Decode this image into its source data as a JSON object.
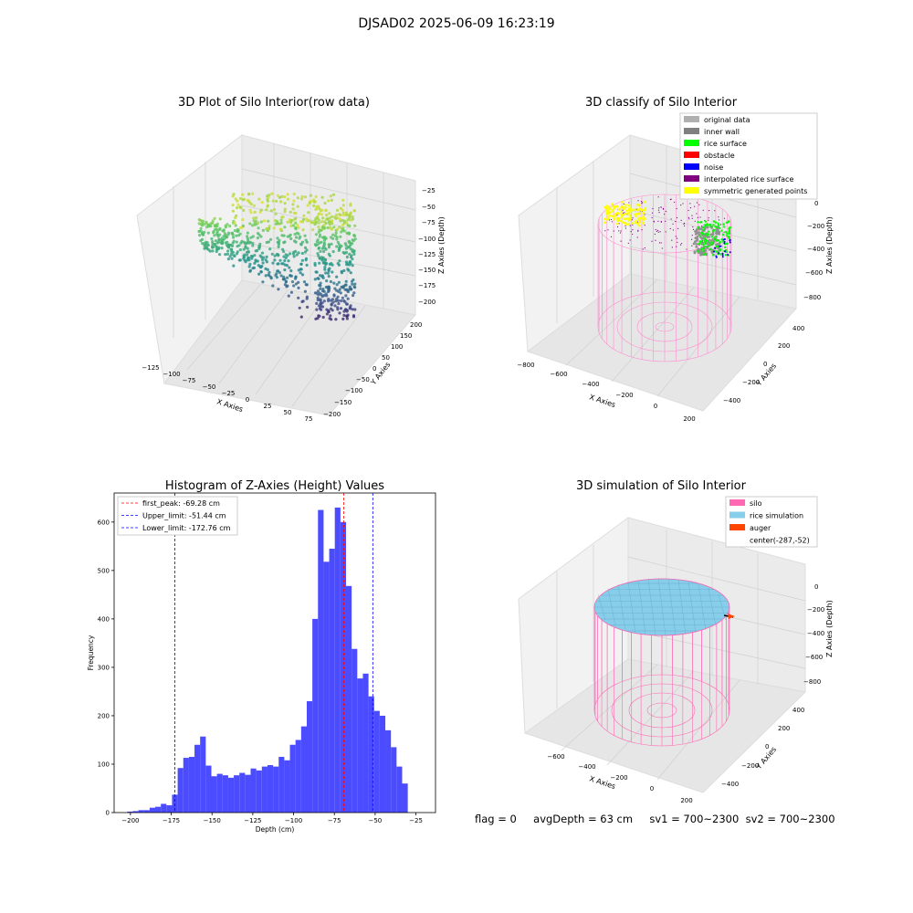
{
  "suptitle": "DJSAD02 2025-06-09 16:23:19",
  "panel1": {
    "title": "3D Plot of Silo Interior(row data)",
    "xlabel": "X Axies",
    "ylabel": "Y Axies",
    "zlabel": "Z Axies (Depth)",
    "xticks": [
      "−125",
      "−100",
      "−75",
      "−50",
      "−25",
      "0",
      "25",
      "50",
      "75"
    ],
    "yticks": [
      "−200",
      "−150",
      "−100",
      "−50",
      "0",
      "50",
      "100",
      "150",
      "200"
    ],
    "zticks": [
      "−25",
      "−50",
      "−75",
      "−100",
      "−125",
      "−150",
      "−175",
      "−200"
    ]
  },
  "panel2": {
    "title": "3D classify of Silo Interior",
    "xlabel": "X Axies",
    "ylabel": "Y Axies",
    "zlabel": "Z Axies (Depth)",
    "xticks": [
      "−800",
      "−600",
      "−400",
      "−200",
      "0",
      "200"
    ],
    "yticks": [
      "−400",
      "−200",
      "0",
      "200",
      "400"
    ],
    "zticks": [
      "0",
      "−200",
      "−400",
      "−600",
      "−800"
    ],
    "legend": [
      {
        "label": "original data",
        "color": "#b0b0b0"
      },
      {
        "label": "inner wall",
        "color": "#808080"
      },
      {
        "label": "rice surface",
        "color": "#00ff00"
      },
      {
        "label": "obstacle",
        "color": "#ff0000"
      },
      {
        "label": "noise",
        "color": "#0000ff"
      },
      {
        "label": "interpolated rice surface",
        "color": "#800080"
      },
      {
        "label": "symmetric generated points",
        "color": "#ffff00"
      }
    ]
  },
  "panel3": {
    "title": "Histogram of Z-Axies (Height) Values",
    "legend": [
      {
        "label": "first_peak: -69.28 cm",
        "color": "#ff0000"
      },
      {
        "label": "Upper_limit: -51.44 cm",
        "color": "#0000ff"
      },
      {
        "label": "Lower_limit: -172.76 cm",
        "color": "#0000ff"
      }
    ]
  },
  "panel4": {
    "title": "3D simulation of Silo Interior",
    "xlabel": "X Axies",
    "ylabel": "Y Axies",
    "zlabel": "Z Axies (Depth)",
    "xticks": [
      "−600",
      "−400",
      "−200",
      "0",
      "200"
    ],
    "yticks": [
      "−400",
      "−200",
      "0",
      "200",
      "400"
    ],
    "zticks": [
      "0",
      "−200",
      "−400",
      "−600",
      "−800"
    ],
    "legend": [
      {
        "label": "silo",
        "color": "#ff69b4"
      },
      {
        "label": "rice simulation",
        "color": "#87ceeb"
      },
      {
        "label": "auger",
        "color": "#ff4500"
      },
      {
        "label": "center(-287,-52)",
        "color": ""
      }
    ]
  },
  "footer": {
    "flag": "flag = 0",
    "avg": "avgDepth = 63 cm",
    "sv1": "sv1 = 700~2300",
    "sv2": "sv2 = 700~2300"
  },
  "chart_data": {
    "type": "bar",
    "title": "Histogram of Z-Axies (Height) Values",
    "xlabel": "Depth (cm)",
    "ylabel": "Frequency",
    "xlim": [
      -210,
      -13
    ],
    "ylim": [
      0,
      660
    ],
    "xticks": [
      -200,
      -175,
      -150,
      -125,
      -100,
      -75,
      -50,
      -25
    ],
    "yticks": [
      0,
      100,
      200,
      300,
      400,
      500,
      600
    ],
    "bar_color": "#4b4bff",
    "bin_start": -202,
    "bin_width": 3.44,
    "values": [
      2,
      3,
      5,
      5,
      10,
      12,
      18,
      15,
      37,
      92,
      113,
      115,
      140,
      157,
      97,
      75,
      80,
      77,
      72,
      77,
      82,
      78,
      91,
      87,
      95,
      98,
      95,
      115,
      108,
      140,
      150,
      178,
      230,
      400,
      625,
      518,
      545,
      630,
      600,
      468,
      338,
      277,
      287,
      240,
      210,
      200,
      170,
      135,
      95,
      60
    ],
    "lines": [
      {
        "name": "first_peak",
        "x": -69.28,
        "color": "#ff0000"
      },
      {
        "name": "Upper_limit",
        "x": -51.44,
        "color": "#0000ff"
      },
      {
        "name": "Lower_limit",
        "x": -172.76,
        "color": "#0000ff"
      }
    ]
  }
}
